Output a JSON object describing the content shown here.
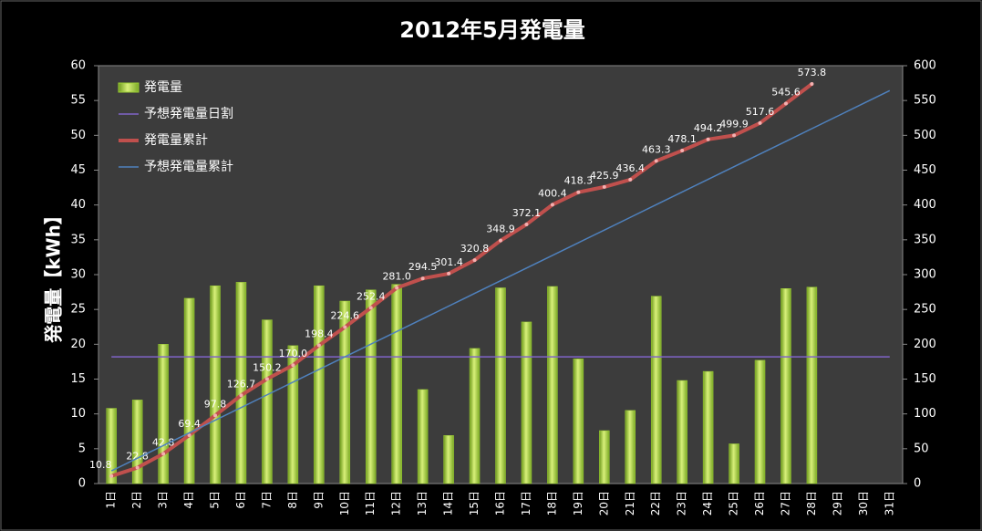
{
  "chart_data": {
    "type": "bar",
    "title": "2012年5月発電量",
    "y_label": "発電量【kWh】",
    "categories": [
      "1日",
      "2日",
      "3日",
      "4日",
      "5日",
      "6日",
      "7日",
      "8日",
      "9日",
      "10日",
      "11日",
      "12日",
      "13日",
      "14日",
      "15日",
      "16日",
      "17日",
      "18日",
      "19日",
      "20日",
      "21日",
      "22日",
      "23日",
      "24日",
      "25日",
      "26日",
      "27日",
      "28日",
      "29日",
      "30日",
      "31日"
    ],
    "series": [
      {
        "name": "発電量",
        "type": "bar",
        "axis": "y",
        "color": "#9acd32",
        "values": [
          10.8,
          12.0,
          20.0,
          26.6,
          28.4,
          28.9,
          23.5,
          19.8,
          28.4,
          26.2,
          27.8,
          28.6,
          13.5,
          6.9,
          19.4,
          28.1,
          23.2,
          28.3,
          17.9,
          7.6,
          10.5,
          26.9,
          14.8,
          16.1,
          5.7,
          17.7,
          28.0,
          28.2,
          null,
          null,
          null
        ]
      },
      {
        "name": "予想発電量日割",
        "type": "line",
        "axis": "y",
        "color": "#8064c8",
        "values": [
          18.2,
          18.2,
          18.2,
          18.2,
          18.2,
          18.2,
          18.2,
          18.2,
          18.2,
          18.2,
          18.2,
          18.2,
          18.2,
          18.2,
          18.2,
          18.2,
          18.2,
          18.2,
          18.2,
          18.2,
          18.2,
          18.2,
          18.2,
          18.2,
          18.2,
          18.2,
          18.2,
          18.2,
          18.2,
          18.2,
          18.2
        ]
      },
      {
        "name": "発電量累計",
        "type": "line",
        "axis": "y2",
        "color": "#c0504d",
        "markers": true,
        "values": [
          10.8,
          22.8,
          42.8,
          69.4,
          97.8,
          126.7,
          150.2,
          170.0,
          198.4,
          224.6,
          252.4,
          281.0,
          294.5,
          301.4,
          320.8,
          348.9,
          372.1,
          400.4,
          418.3,
          425.9,
          436.4,
          463.3,
          478.1,
          494.2,
          499.9,
          517.6,
          545.6,
          573.8,
          null,
          null,
          null
        ],
        "value_labels": [
          "10.8",
          "22.8",
          "42.8",
          "69.4",
          "97.8",
          "126.7",
          "150.2",
          "170.0",
          "198.4",
          "224.6",
          "252.4",
          "281.0",
          "294.5",
          "301.4",
          "320.8",
          "348.9",
          "372.1",
          "400.4",
          "418.3",
          "425.9",
          "436.4",
          "463.3",
          "478.1",
          "494.2",
          "499.9",
          "517.6",
          "545.6",
          "573.8",
          null,
          null,
          null
        ]
      },
      {
        "name": "予想発電量累計",
        "type": "line",
        "axis": "y2",
        "color": "#4f81bd",
        "values": [
          18.2,
          36.4,
          54.6,
          72.8,
          91.0,
          109.2,
          127.4,
          145.6,
          163.8,
          182.0,
          200.2,
          218.4,
          236.6,
          254.8,
          273.0,
          291.2,
          309.4,
          327.6,
          345.8,
          364.0,
          382.2,
          400.4,
          418.6,
          436.8,
          455.0,
          473.2,
          491.4,
          509.6,
          527.8,
          546.0,
          564.2
        ]
      }
    ],
    "ylim": [
      0,
      60
    ],
    "yticks": [
      0,
      5,
      10,
      15,
      20,
      25,
      30,
      35,
      40,
      45,
      50,
      55,
      60
    ],
    "y2lim": [
      0,
      600
    ],
    "y2ticks": [
      0,
      50,
      100,
      150,
      200,
      250,
      300,
      350,
      400,
      450,
      500,
      550,
      600
    ],
    "grid": false,
    "legend": "upper left"
  }
}
